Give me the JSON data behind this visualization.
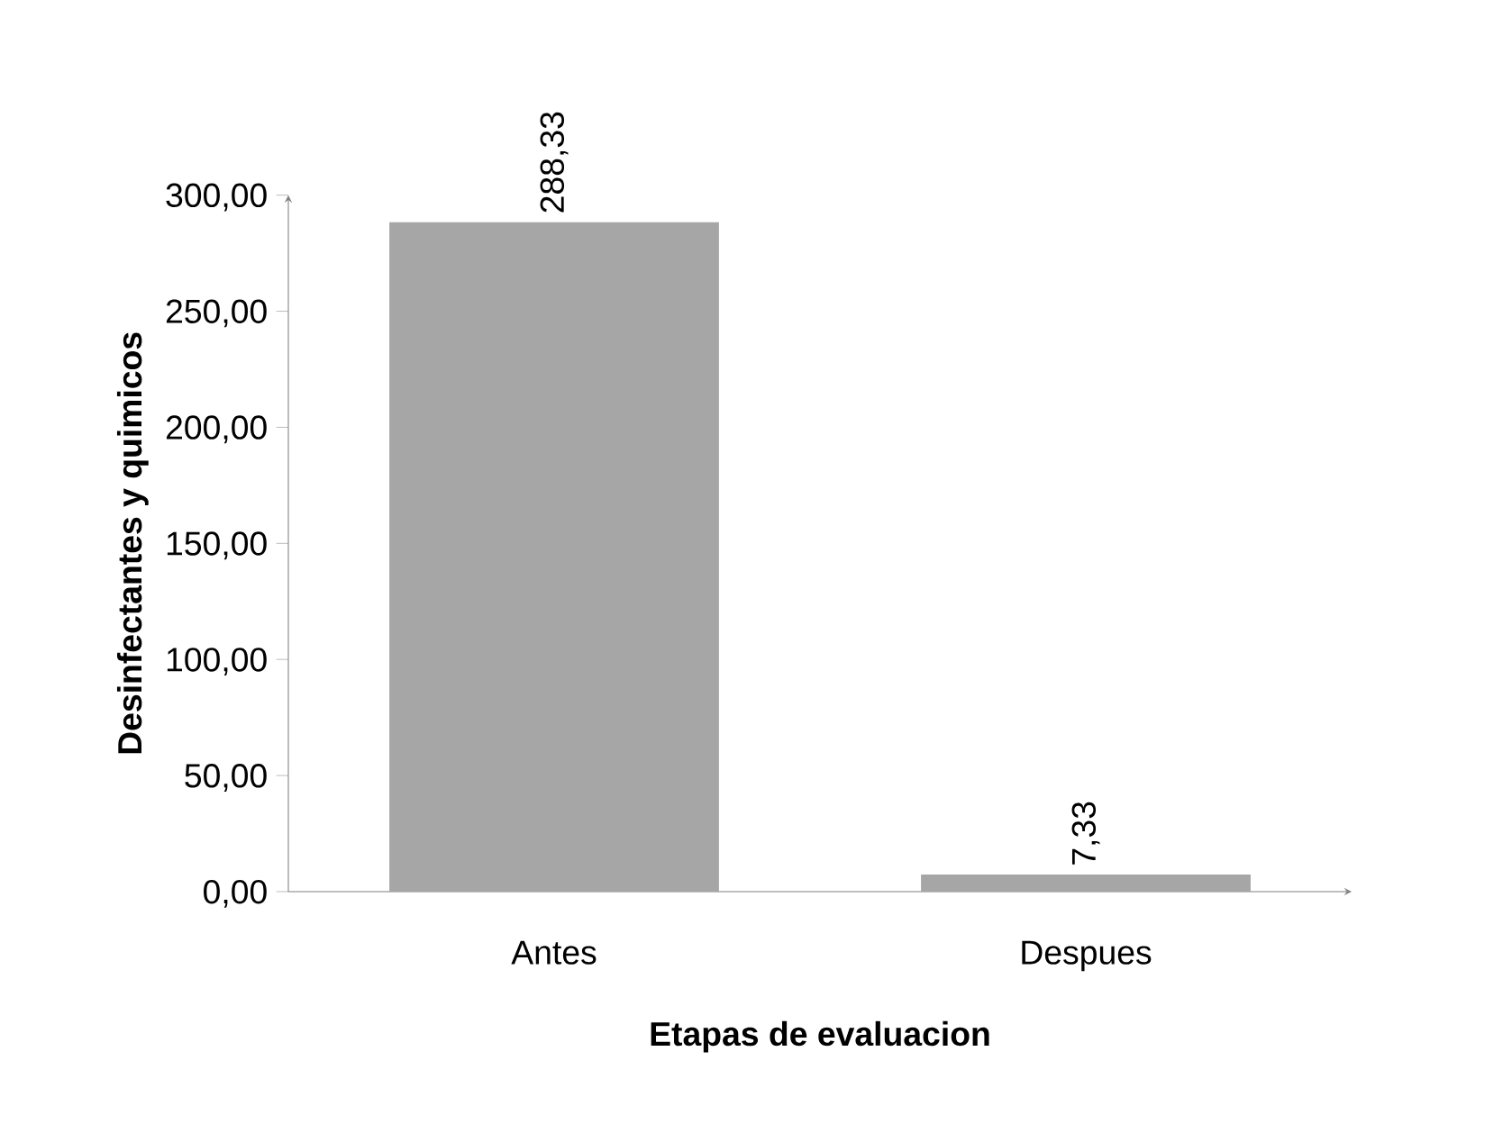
{
  "chart_data": {
    "type": "bar",
    "xlabel": "Etapas de evaluacion",
    "ylabel": "Desinfectantes y quimicos",
    "categories": [
      "Antes",
      "Despues"
    ],
    "values": [
      288.33,
      7.33
    ],
    "value_labels": [
      "288,33",
      "7,33"
    ],
    "color": "#a6a6a6",
    "ylim": [
      0,
      300
    ],
    "yticks": [
      {
        "value": 0,
        "label": "0,00"
      },
      {
        "value": 50,
        "label": "50,00"
      },
      {
        "value": 100,
        "label": "100,00"
      },
      {
        "value": 150,
        "label": "150,00"
      },
      {
        "value": 200,
        "label": "200,00"
      },
      {
        "value": 250,
        "label": "250,00"
      },
      {
        "value": 300,
        "label": "300,00"
      }
    ]
  }
}
